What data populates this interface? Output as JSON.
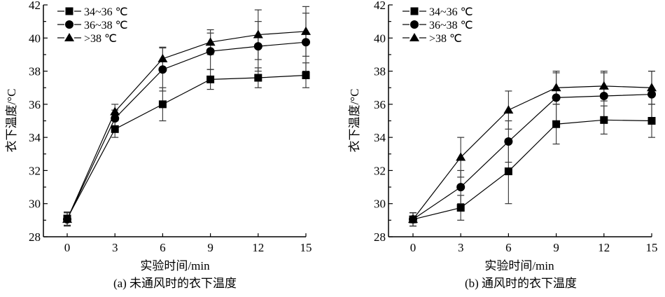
{
  "chart_data": [
    {
      "type": "line",
      "title": "(a) 未通风时的衣下温度",
      "xlabel": "实验时间/min",
      "ylabel": "衣下温度/°C",
      "x": [
        0,
        3,
        6,
        9,
        12,
        15
      ],
      "xticks": [
        "0",
        "3",
        "6",
        "9",
        "12",
        "15"
      ],
      "yticks": [
        "28",
        "30",
        "32",
        "34",
        "36",
        "38",
        "40",
        "42"
      ],
      "xlim": [
        -2.2,
        15
      ],
      "ylim": [
        28,
        42
      ],
      "grid": false,
      "legend_position": "top-left",
      "series": [
        {
          "name": "34~36 ℃",
          "marker": "square",
          "values": [
            29.1,
            34.5,
            36.0,
            37.5,
            37.6,
            37.75
          ],
          "errors": [
            0.4,
            0.5,
            1.0,
            0.6,
            0.6,
            0.75
          ]
        },
        {
          "name": "36~38 ℃",
          "marker": "circle",
          "values": [
            29.05,
            35.15,
            38.1,
            39.2,
            39.5,
            39.75
          ],
          "errors": [
            0.4,
            0.5,
            1.3,
            1.1,
            1.5,
            1.75
          ]
        },
        {
          "name": ">38 ℃",
          "marker": "triangle",
          "values": [
            29.05,
            35.55,
            38.75,
            39.75,
            40.2,
            40.4
          ],
          "errors": [
            0.4,
            0.45,
            0.7,
            0.75,
            1.5,
            1.5
          ]
        }
      ]
    },
    {
      "type": "line",
      "title": "(b) 通风时的衣下温度",
      "xlabel": "实验时间/min",
      "ylabel": "衣下温度/°C",
      "x": [
        0,
        3,
        6,
        9,
        12,
        15
      ],
      "xticks": [
        "0",
        "3",
        "6",
        "9",
        "12",
        "15"
      ],
      "yticks": [
        "28",
        "30",
        "32",
        "34",
        "36",
        "38",
        "40",
        "42"
      ],
      "xlim": [
        -1.5,
        15
      ],
      "ylim": [
        28,
        42
      ],
      "grid": false,
      "legend_position": "top-left",
      "series": [
        {
          "name": "34~36 ℃",
          "marker": "square",
          "values": [
            29.05,
            29.75,
            31.95,
            34.8,
            35.05,
            35.0
          ],
          "errors": [
            0.4,
            0.75,
            1.95,
            1.2,
            0.85,
            1.0
          ]
        },
        {
          "name": "36~38 ℃",
          "marker": "circle",
          "values": [
            29.05,
            31.0,
            33.75,
            36.4,
            36.5,
            36.6
          ],
          "errors": [
            0.4,
            1.0,
            1.25,
            1.5,
            1.4,
            1.4
          ]
        },
        {
          "name": ">38 ℃",
          "marker": "triangle",
          "values": [
            29.05,
            32.8,
            35.65,
            37.0,
            37.1,
            37.0
          ],
          "errors": [
            0.4,
            1.2,
            1.15,
            1.0,
            0.9,
            1.0
          ]
        }
      ]
    }
  ]
}
